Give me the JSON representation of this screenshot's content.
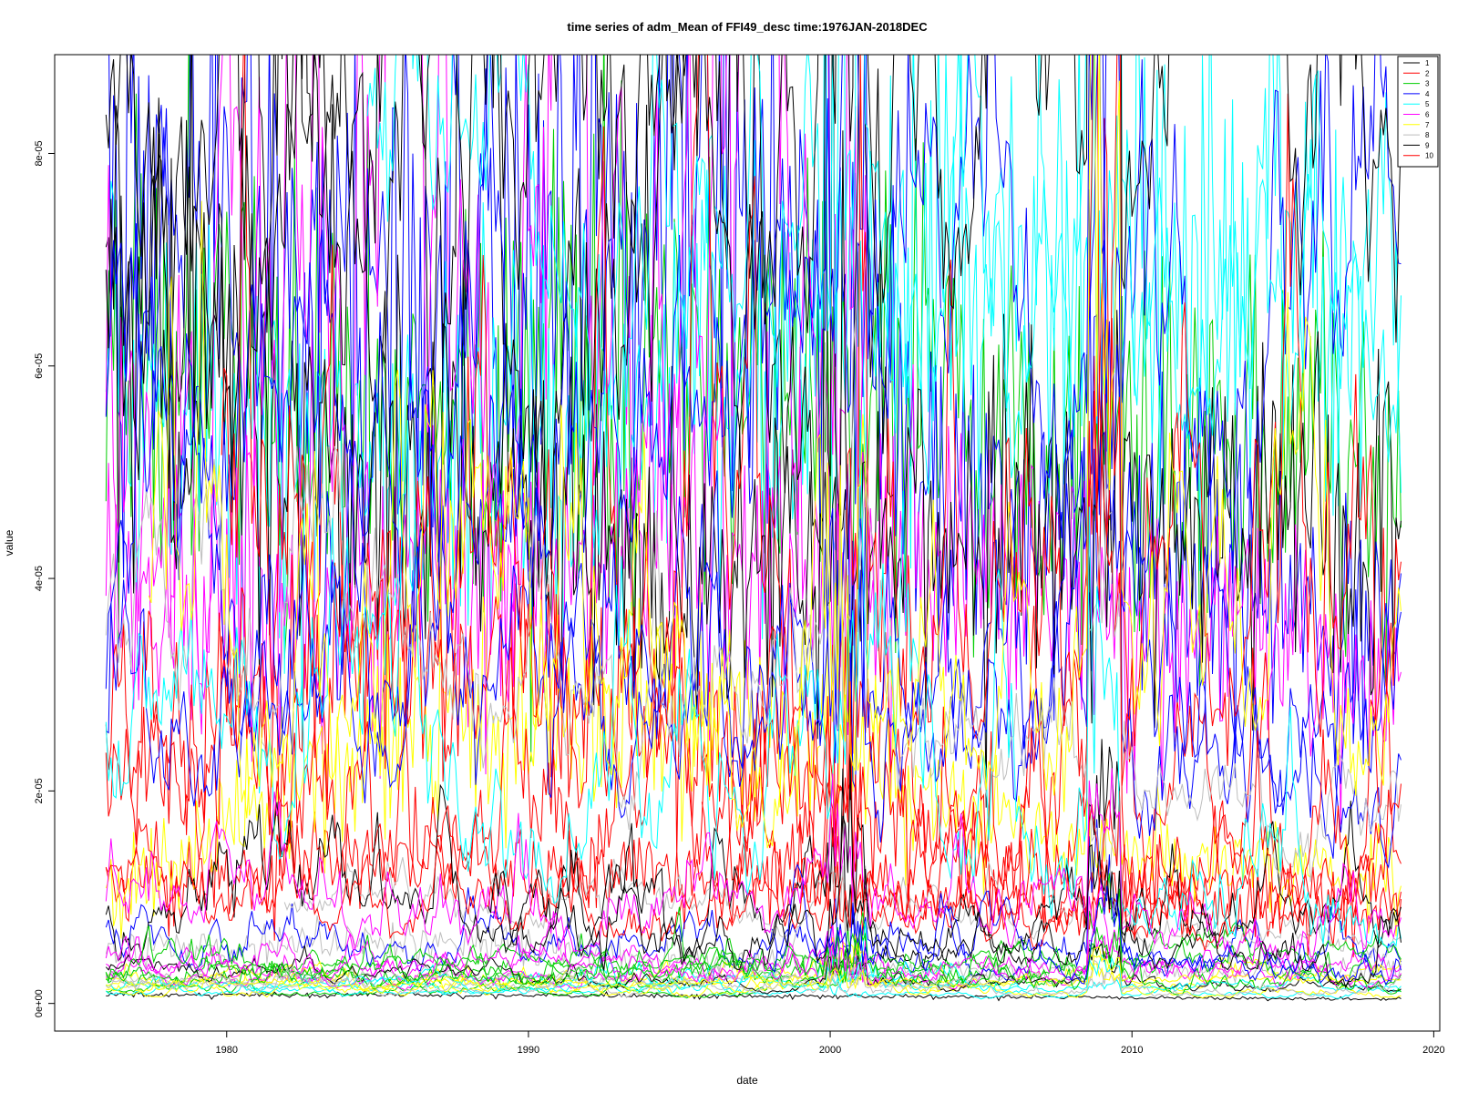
{
  "chart_data": {
    "type": "line",
    "title": "time series of adm_Mean of FFI49_desc time:1976JAN-2018DEC",
    "xlabel": "date",
    "ylabel": "value",
    "xlim": [
      1974.3,
      2020.2
    ],
    "ylim": [
      -2.6e-06,
      8.93e-05
    ],
    "x_ticks": [
      1980,
      1990,
      2000,
      2010,
      2020
    ],
    "x_tick_labels": [
      "1980",
      "1990",
      "2000",
      "2010",
      "2020"
    ],
    "y_ticks": [
      0,
      2e-05,
      4e-05,
      6e-05,
      8e-05
    ],
    "y_tick_labels": [
      "0e+00",
      "2e-05",
      "4e-05",
      "6e-05",
      "8e-05"
    ],
    "x_start": 1976.0,
    "x_end": 2018.92,
    "grid": false,
    "legend_position": "top-right",
    "legend": [
      {
        "label": "1",
        "color": "#000000"
      },
      {
        "label": "2",
        "color": "#ff0000"
      },
      {
        "label": "3",
        "color": "#00cd00"
      },
      {
        "label": "4",
        "color": "#0000ff"
      },
      {
        "label": "5",
        "color": "#00ffff"
      },
      {
        "label": "6",
        "color": "#ff00ff"
      },
      {
        "label": "7",
        "color": "#ffff00"
      },
      {
        "label": "8",
        "color": "#bebebe"
      },
      {
        "label": "9",
        "color": "#000000"
      },
      {
        "label": "10",
        "color": "#ff0000"
      }
    ],
    "palette": [
      "#000000",
      "#ff0000",
      "#00cd00",
      "#0000ff",
      "#00ffff",
      "#ff00ff",
      "#ffff00",
      "#bebebe"
    ],
    "series_count": 49,
    "series": [
      {
        "points": [
          [
            1976.0,
            8e-07
          ],
          [
            1986.0,
            8e-07
          ],
          [
            1996.0,
            7e-07
          ],
          [
            2006.0,
            6e-07
          ],
          [
            2018.9,
            4e-07
          ]
        ]
      },
      {
        "points": [
          [
            1976.0,
            1.1e-05
          ],
          [
            1986.0,
            1.4e-05
          ],
          [
            1996.0,
            1.2e-05
          ],
          [
            2006.0,
            9e-06
          ],
          [
            2018.9,
            8e-06
          ]
        ]
      },
      {
        "points": [
          [
            1976.0,
            6e-05
          ],
          [
            1986.0,
            5.5e-05
          ],
          [
            1996.0,
            6.2e-05
          ],
          [
            2006.0,
            5.2e-05
          ],
          [
            2018.9,
            5e-05
          ]
        ]
      },
      {
        "points": [
          [
            1976.0,
            8e-05
          ],
          [
            1986.0,
            7e-05
          ],
          [
            1996.0,
            7.5e-05
          ],
          [
            2006.0,
            4.5e-05
          ],
          [
            2018.9,
            3.5e-05
          ]
        ]
      },
      {
        "points": [
          [
            1976.0,
            5.8e-05
          ],
          [
            1986.0,
            5e-05
          ],
          [
            1996.0,
            6e-05
          ],
          [
            2006.0,
            7e-05
          ],
          [
            2018.9,
            7e-05
          ]
        ]
      },
      {
        "points": [
          [
            1976.0,
            3.6e-05
          ],
          [
            1986.0,
            4e-05
          ],
          [
            1996.0,
            4.5e-05
          ],
          [
            2006.0,
            4e-05
          ],
          [
            2018.9,
            3e-05
          ]
        ]
      },
      {
        "points": [
          [
            1976.0,
            1e-05
          ],
          [
            1986.0,
            2.5e-05
          ],
          [
            1996.0,
            3e-05
          ],
          [
            2006.0,
            1.5e-05
          ],
          [
            2018.9,
            1.2e-05
          ]
        ]
      },
      {
        "points": [
          [
            1976.0,
            5e-06
          ],
          [
            1986.0,
            6e-06
          ],
          [
            1996.0,
            4e-06
          ],
          [
            2006.0,
            3e-06
          ],
          [
            2018.9,
            3e-06
          ]
        ]
      },
      {
        "points": [
          [
            1976.0,
            6.6e-05
          ],
          [
            1986.0,
            5e-05
          ],
          [
            1996.0,
            4e-05
          ],
          [
            2006.0,
            4.5e-05
          ],
          [
            2018.9,
            4.6e-05
          ]
        ]
      },
      {
        "points": [
          [
            1976.0,
            2e-05
          ],
          [
            1986.0,
            3.5e-05
          ],
          [
            1996.0,
            2.5e-05
          ],
          [
            2006.0,
            1.2e-05
          ],
          [
            2018.9,
            1e-05
          ]
        ]
      }
    ]
  }
}
